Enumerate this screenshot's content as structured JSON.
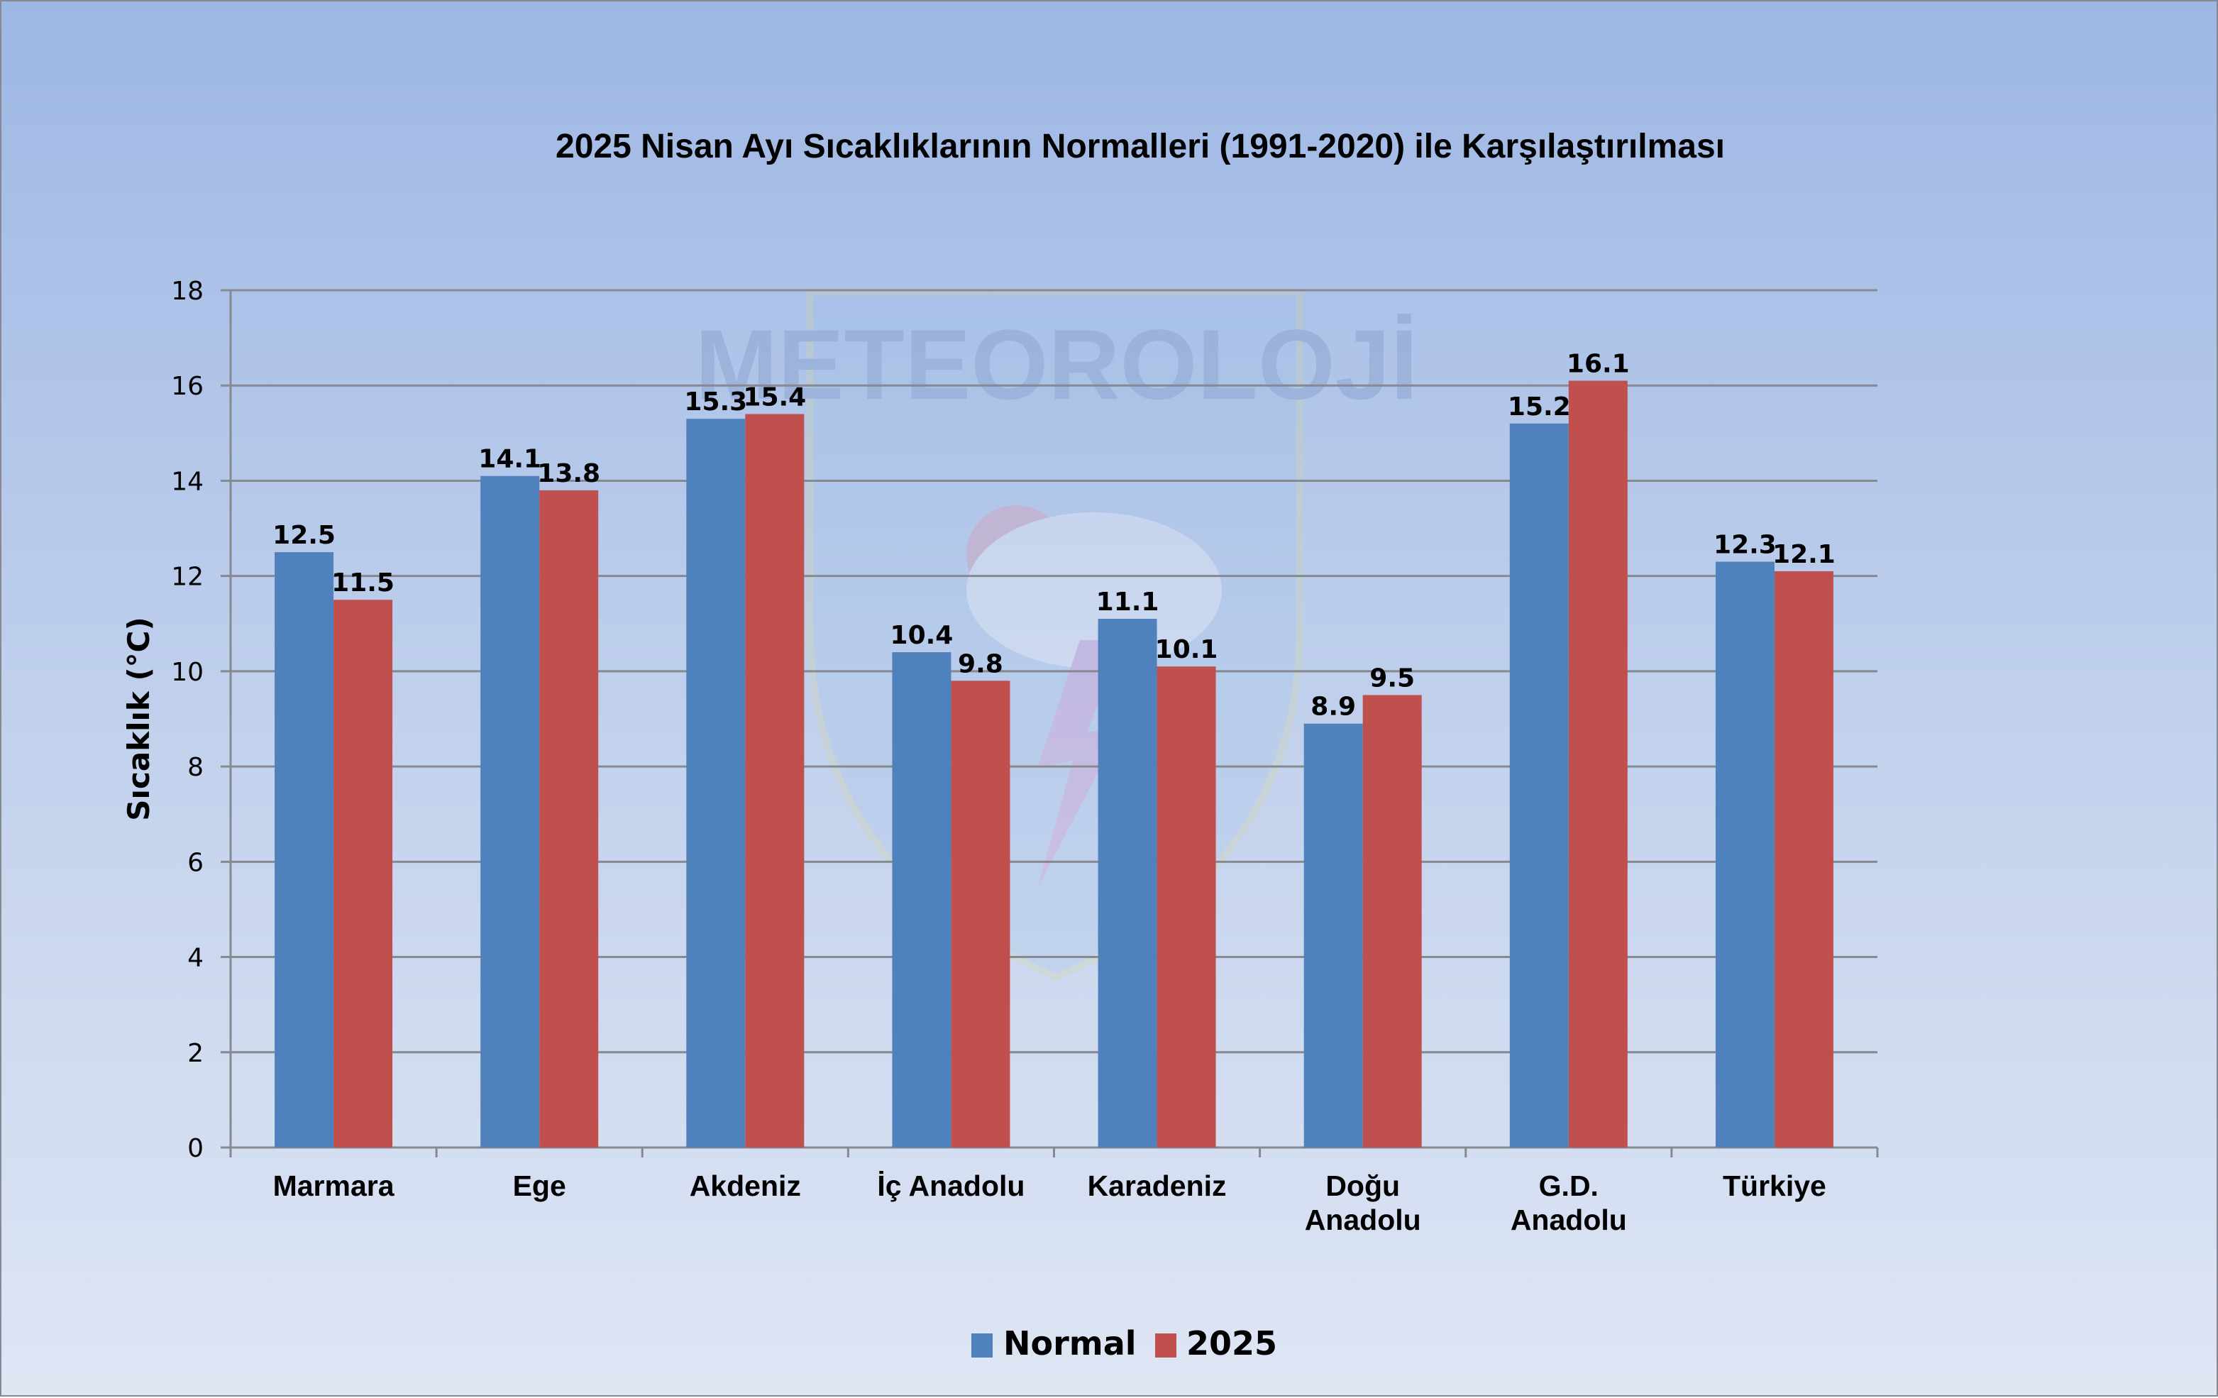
{
  "watermark": {
    "logo_text": "METEOROLOJİ"
  },
  "chart_data": {
    "type": "bar",
    "title": "2025 Nisan Ayı Sıcaklıklarının Normalleri (1991-2020) ile Karşılaştırılması",
    "xlabel": "",
    "ylabel": "Sıcaklık (°C)",
    "ylim": [
      0,
      18
    ],
    "yticks": [
      0,
      2,
      4,
      6,
      8,
      10,
      12,
      14,
      16,
      18
    ],
    "grid": true,
    "legend_position": "bottom",
    "categories": [
      "Marmara",
      "Ege",
      "Akdeniz",
      "İç Anadolu",
      "Karadeniz",
      "Doğu Anadolu",
      "G.D. Anadolu",
      "Türkiye"
    ],
    "category_lines": [
      [
        "Marmara"
      ],
      [
        "Ege"
      ],
      [
        "Akdeniz"
      ],
      [
        "İç Anadolu"
      ],
      [
        "Karadeniz"
      ],
      [
        "Doğu",
        "Anadolu"
      ],
      [
        "G.D.",
        "Anadolu"
      ],
      [
        "Türkiye"
      ]
    ],
    "series": [
      {
        "name": "Normal",
        "color": "#4f81bd",
        "values": [
          12.5,
          14.1,
          15.3,
          10.4,
          11.1,
          8.9,
          15.2,
          12.3
        ]
      },
      {
        "name": "2025",
        "color": "#c0504d",
        "values": [
          11.5,
          13.8,
          15.4,
          9.8,
          10.1,
          9.5,
          16.1,
          12.1
        ]
      }
    ]
  }
}
